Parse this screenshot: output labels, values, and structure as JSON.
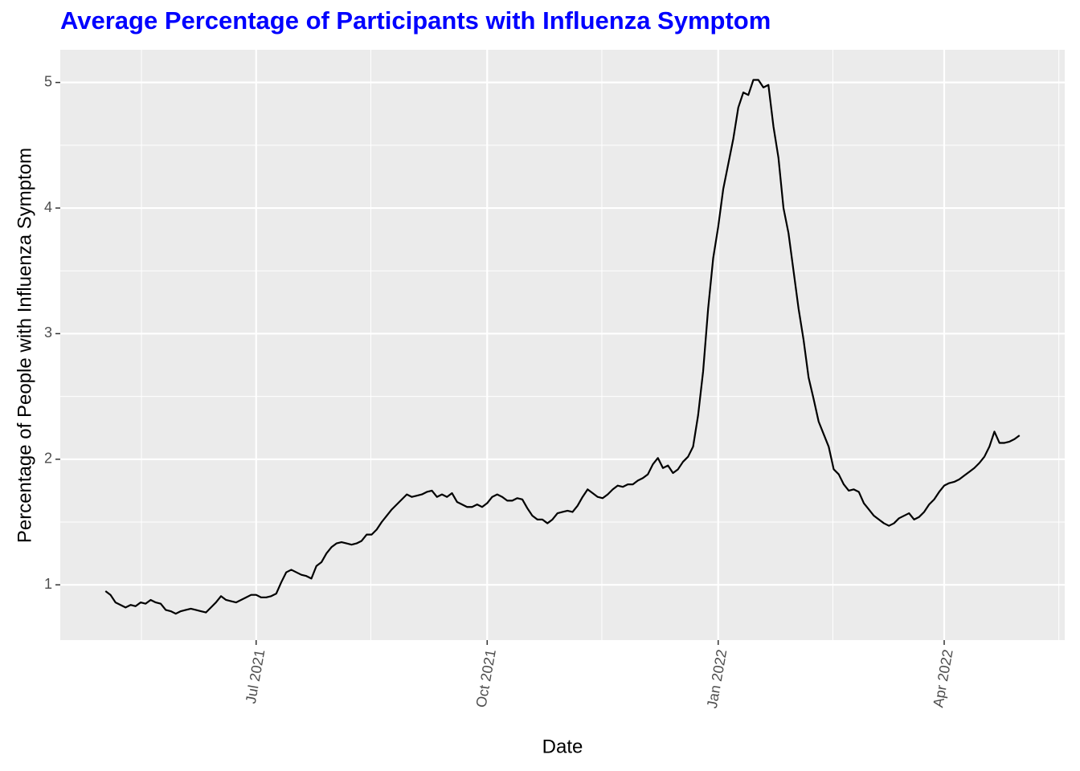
{
  "chart_data": {
    "type": "line",
    "title": "Average Percentage of Participants with Influenza Symptom",
    "x_label": "Date",
    "y_label": "Percentage of People with Influenza Symptom",
    "color": "#000000",
    "grid": true,
    "categories": [
      null,
      null,
      null,
      null,
      null,
      null,
      null,
      null,
      null,
      null,
      null,
      null,
      null,
      null,
      null,
      null,
      null,
      null,
      null,
      null,
      null,
      null,
      null,
      null,
      null,
      null,
      null,
      null,
      null,
      null,
      "Jul 2021",
      null,
      null,
      null,
      null,
      null,
      null,
      null,
      null,
      null,
      null,
      null,
      null,
      null,
      null,
      null,
      null,
      null,
      null,
      null,
      null,
      null,
      null,
      null,
      null,
      null,
      null,
      null,
      null,
      null,
      null,
      null,
      null,
      null,
      null,
      null,
      null,
      null,
      null,
      null,
      null,
      null,
      null,
      null,
      null,
      null,
      "Oct 2021",
      null,
      null,
      null,
      null,
      null,
      null,
      null,
      null,
      null,
      null,
      null,
      null,
      null,
      null,
      null,
      null,
      null,
      null,
      null,
      null,
      null,
      null,
      null,
      null,
      null,
      null,
      null,
      null,
      null,
      null,
      null,
      null,
      null,
      null,
      null,
      null,
      null,
      null,
      null,
      null,
      null,
      null,
      null,
      null,
      null,
      "Jan 2022",
      null,
      null,
      null,
      null,
      null,
      null,
      null,
      null,
      null,
      null,
      null,
      null,
      null,
      null,
      null,
      null,
      null,
      null,
      null,
      null,
      null,
      null,
      null,
      null,
      null,
      null,
      null,
      null,
      null,
      null,
      null,
      null,
      null,
      null,
      null,
      null,
      null,
      null,
      null,
      null,
      null,
      null,
      null,
      null,
      "Apr 2022",
      null,
      null,
      null,
      null,
      null,
      null,
      null,
      null,
      null,
      null,
      null,
      null,
      null,
      null,
      null
    ],
    "values": [
      0.95,
      0.92,
      0.86,
      0.84,
      0.82,
      0.84,
      0.83,
      0.86,
      0.85,
      0.88,
      0.86,
      0.85,
      0.8,
      0.79,
      0.77,
      0.79,
      0.8,
      0.81,
      0.8,
      0.79,
      0.78,
      0.82,
      0.86,
      0.91,
      0.88,
      0.87,
      0.86,
      0.88,
      0.9,
      0.92,
      0.92,
      0.9,
      0.9,
      0.91,
      0.93,
      1.02,
      1.1,
      1.12,
      1.1,
      1.08,
      1.07,
      1.05,
      1.15,
      1.18,
      1.25,
      1.3,
      1.33,
      1.34,
      1.33,
      1.32,
      1.33,
      1.35,
      1.4,
      1.4,
      1.44,
      1.5,
      1.55,
      1.6,
      1.64,
      1.68,
      1.72,
      1.7,
      1.71,
      1.72,
      1.74,
      1.75,
      1.7,
      1.72,
      1.7,
      1.73,
      1.66,
      1.64,
      1.62,
      1.62,
      1.64,
      1.62,
      1.65,
      1.7,
      1.72,
      1.7,
      1.67,
      1.67,
      1.69,
      1.68,
      1.61,
      1.55,
      1.52,
      1.52,
      1.49,
      1.52,
      1.57,
      1.58,
      1.59,
      1.58,
      1.63,
      1.7,
      1.76,
      1.73,
      1.7,
      1.69,
      1.72,
      1.76,
      1.79,
      1.78,
      1.8,
      1.8,
      1.83,
      1.85,
      1.88,
      1.96,
      2.01,
      1.93,
      1.95,
      1.89,
      1.92,
      1.98,
      2.02,
      2.1,
      2.35,
      2.7,
      3.2,
      3.6,
      3.85,
      4.15,
      4.35,
      4.55,
      4.8,
      4.92,
      4.9,
      5.02,
      5.02,
      4.96,
      4.98,
      4.65,
      4.4,
      4.0,
      3.8,
      3.5,
      3.2,
      2.95,
      2.65,
      2.48,
      2.3,
      2.2,
      2.1,
      1.92,
      1.88,
      1.8,
      1.75,
      1.76,
      1.74,
      1.65,
      1.6,
      1.55,
      1.52,
      1.49,
      1.47,
      1.49,
      1.53,
      1.55,
      1.57,
      1.52,
      1.54,
      1.58,
      1.64,
      1.68,
      1.74,
      1.79,
      1.81,
      1.82,
      1.84,
      1.87,
      1.9,
      1.93,
      1.97,
      2.02,
      2.1,
      2.22,
      2.13,
      2.13,
      2.14,
      2.16,
      2.19
    ],
    "ylim": [
      0.56,
      5.26
    ],
    "yticks": [
      1,
      2,
      3,
      4,
      5
    ]
  }
}
